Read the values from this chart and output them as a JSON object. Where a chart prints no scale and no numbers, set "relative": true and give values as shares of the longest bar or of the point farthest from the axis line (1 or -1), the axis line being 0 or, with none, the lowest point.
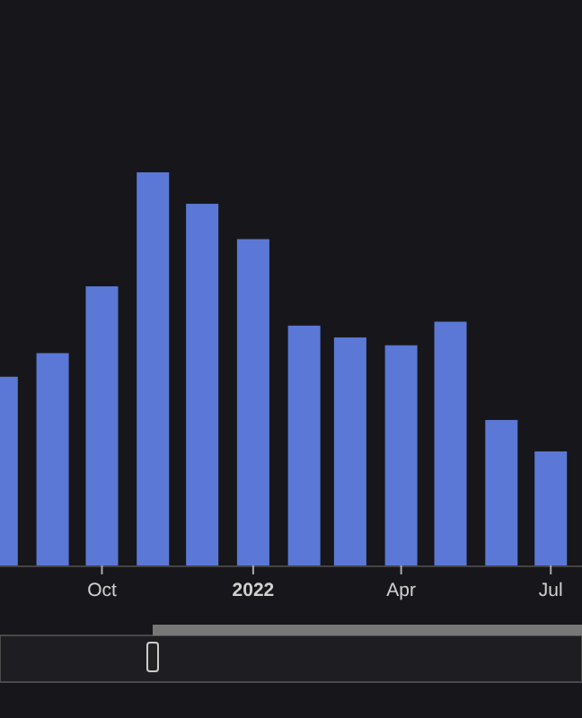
{
  "chart_data": {
    "type": "bar",
    "relative": true,
    "color": "#5b78d6",
    "x": [
      "2021-08-01",
      "2021-09-01",
      "2021-10-01",
      "2021-11-01",
      "2021-12-01",
      "2022-01-01",
      "2022-02-01",
      "2022-03-01",
      "2022-04-01",
      "2022-05-01",
      "2022-06-01",
      "2022-07-01"
    ],
    "values": [
      0.48,
      0.54,
      0.71,
      1,
      0.92,
      0.83,
      0.61,
      0.58,
      0.56,
      0.62,
      0.37,
      0.29
    ],
    "xlim": [
      "2021-07-31",
      "2022-07-20"
    ],
    "xticks": [
      {
        "value": "2021-10-01",
        "label": "Oct"
      },
      {
        "value": "2022-01-01",
        "label": "2022"
      },
      {
        "value": "2022-04-01",
        "label": "Apr"
      },
      {
        "value": "2022-07-01",
        "label": "Jul"
      }
    ]
  }
}
